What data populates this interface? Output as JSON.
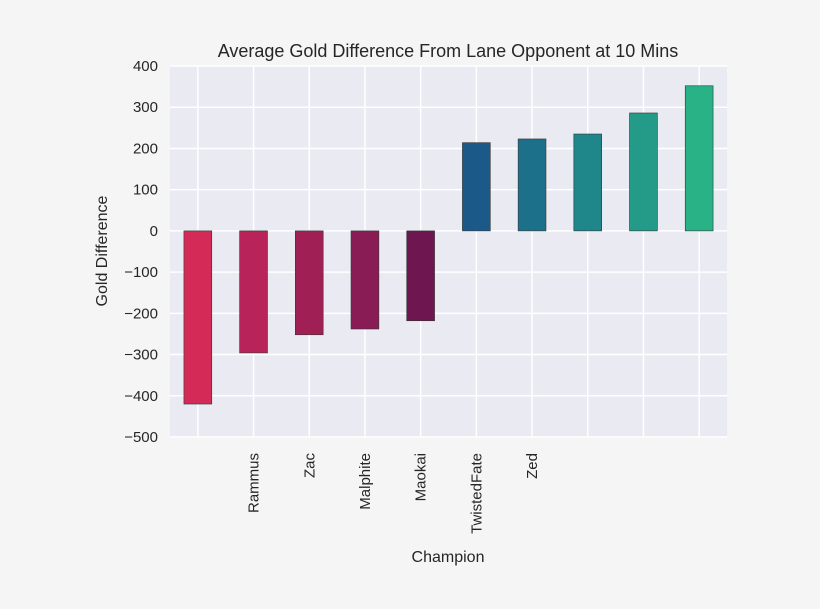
{
  "chart_data": {
    "type": "bar",
    "title": "Average Gold Difference From Lane Opponent at 10 Mins",
    "xlabel": "Champion",
    "ylabel": "Gold Difference",
    "ylim": [
      -500,
      400
    ],
    "yticks": [
      400,
      300,
      200,
      100,
      0,
      -100,
      -200,
      -300,
      -400,
      -500
    ],
    "ytick_labels": [
      "400",
      "300",
      "200",
      "100",
      "0",
      "−100",
      "−200",
      "−300",
      "−400",
      "−500"
    ],
    "categories": [
      "",
      "Rammus",
      "Zac",
      "Malphite",
      "Maokai",
      "TwistedFate",
      "Zed",
      "",
      "",
      ""
    ],
    "values": [
      -420,
      -296,
      -252,
      -238,
      -218,
      214,
      223,
      235,
      286,
      352
    ],
    "colors": [
      "#d42a58",
      "#b8245a",
      "#a02055",
      "#8a1c55",
      "#6e1650",
      "#1b5a88",
      "#1c7089",
      "#1f868a",
      "#249a88",
      "#2ab287"
    ],
    "grid": true,
    "background": "#eaeaf2"
  }
}
